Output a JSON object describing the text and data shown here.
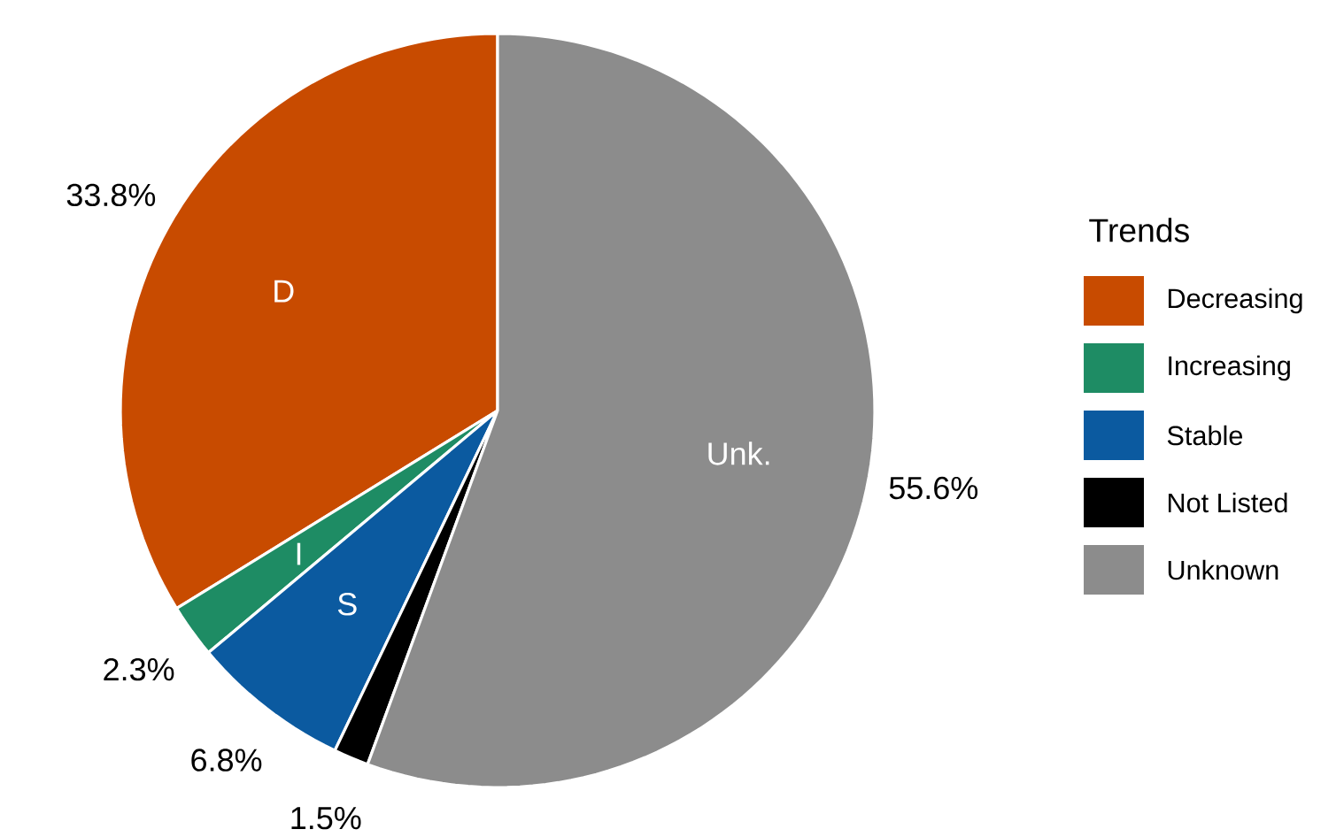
{
  "chart_data": {
    "type": "pie",
    "legend_title": "Trends",
    "legend": "right",
    "categories": [
      "Decreasing",
      "Increasing",
      "Stable",
      "Not Listed",
      "Unknown"
    ],
    "values": [
      33.8,
      2.3,
      6.8,
      1.5,
      55.6
    ],
    "colors": [
      "#c84b00",
      "#1e8c64",
      "#0b5aa0",
      "#000000",
      "#8c8c8c"
    ],
    "value_labels": [
      "33.8%",
      "2.3%",
      "6.8%",
      "1.5%",
      "55.6%"
    ],
    "annotations": [
      {
        "text": "D",
        "x": "Decreasing"
      },
      {
        "text": "I",
        "x": "Increasing"
      },
      {
        "text": "S",
        "x": "Stable"
      },
      {
        "text": "Unk.",
        "x": "Unknown"
      }
    ]
  }
}
